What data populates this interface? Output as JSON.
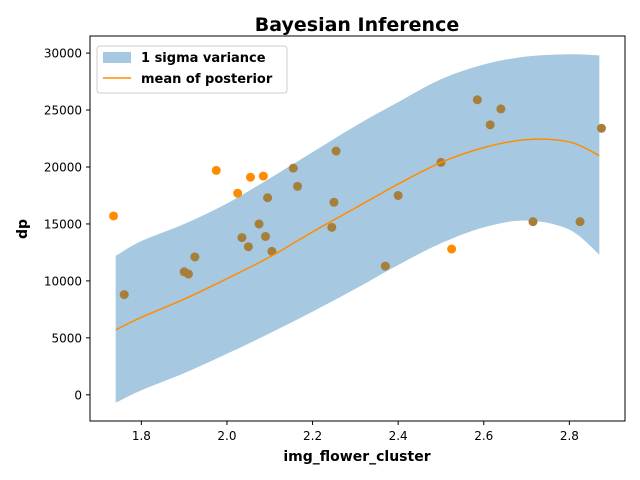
{
  "chart_data": {
    "type": "scatter",
    "title": "Bayesian Inference",
    "xlabel": "img_flower_cluster",
    "ylabel": "dp",
    "xlim": [
      1.68,
      2.93
    ],
    "ylim": [
      -2300,
      31500
    ],
    "x_ticks": [
      1.8,
      2.0,
      2.2,
      2.4,
      2.6,
      2.8
    ],
    "x_tick_labels": [
      "1.8",
      "2.0",
      "2.2",
      "2.4",
      "2.6",
      "2.8"
    ],
    "y_ticks": [
      0,
      5000,
      10000,
      15000,
      20000,
      25000,
      30000
    ],
    "y_tick_labels": [
      "0",
      "5000",
      "10000",
      "15000",
      "20000",
      "25000",
      "30000"
    ],
    "legend": {
      "location": "top-left",
      "entries": [
        {
          "label": "1 sigma variance",
          "type": "band",
          "color": "#a6c8e0"
        },
        {
          "label": "mean of posterior",
          "type": "line",
          "color": "#ff8c00"
        }
      ]
    },
    "colors": {
      "band": "#a6c8e0",
      "mean": "#ff8c00",
      "point": "#ff8c00",
      "point_inside": "#a67f3a"
    },
    "mean_curve": {
      "x": [
        1.74,
        1.8,
        1.9,
        2.0,
        2.1,
        2.2,
        2.3,
        2.4,
        2.5,
        2.6,
        2.7,
        2.8,
        2.87
      ],
      "y": [
        5700,
        6800,
        8400,
        10200,
        12100,
        14300,
        16400,
        18500,
        20400,
        21700,
        22400,
        22200,
        21000
      ]
    },
    "band_upper": {
      "x": [
        1.74,
        1.8,
        1.9,
        2.0,
        2.1,
        2.2,
        2.3,
        2.4,
        2.5,
        2.6,
        2.7,
        2.8,
        2.87
      ],
      "y": [
        12200,
        13500,
        15000,
        16800,
        19000,
        21300,
        23600,
        25700,
        27700,
        29000,
        29700,
        29900,
        29800
      ]
    },
    "band_lower": {
      "x": [
        1.74,
        1.8,
        1.9,
        2.0,
        2.1,
        2.2,
        2.3,
        2.4,
        2.5,
        2.6,
        2.7,
        2.8,
        2.87
      ],
      "y": [
        -700,
        400,
        1900,
        3600,
        5400,
        7300,
        9300,
        11400,
        13300,
        14700,
        15300,
        14500,
        12300
      ]
    },
    "points": {
      "x": [
        1.735,
        1.76,
        1.9,
        1.91,
        1.925,
        1.975,
        2.025,
        2.035,
        2.05,
        2.055,
        2.075,
        2.085,
        2.09,
        2.095,
        2.105,
        2.155,
        2.165,
        2.245,
        2.25,
        2.255,
        2.37,
        2.4,
        2.5,
        2.525,
        2.585,
        2.615,
        2.64,
        2.715,
        2.825,
        2.875
      ],
      "y": [
        15700,
        8800,
        10800,
        10600,
        12100,
        19700,
        17700,
        13800,
        13000,
        19100,
        15000,
        19200,
        13900,
        17300,
        12600,
        19900,
        18300,
        14700,
        16900,
        21400,
        11300,
        17500,
        20400,
        12800,
        25900,
        23700,
        25100,
        15200,
        15200,
        23400
      ]
    }
  }
}
